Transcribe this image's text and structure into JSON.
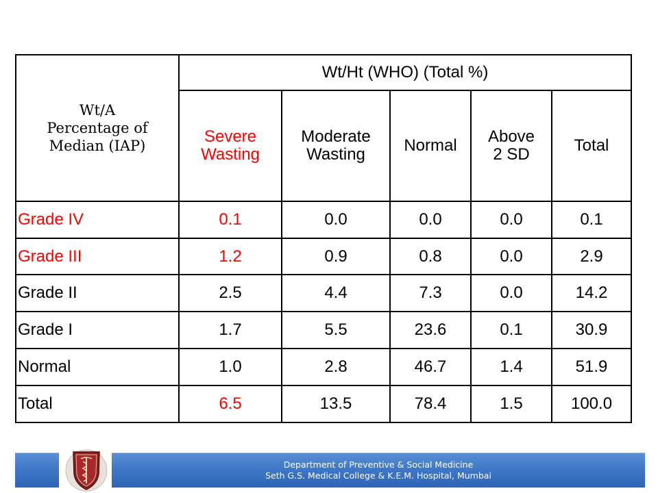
{
  "table": {
    "corner_header": [
      "Wt/A",
      "Percentage of",
      "Median (IAP)"
    ],
    "group_header": "Wt/Ht (WHO) (Total %)",
    "columns": [
      {
        "lines": [
          "Severe",
          "Wasting"
        ],
        "color": "#ff0000"
      },
      {
        "lines": [
          "Moderate",
          "Wasting"
        ],
        "color": "#000000"
      },
      {
        "lines": [
          "Normal"
        ],
        "color": "#000000"
      },
      {
        "lines": [
          "Above",
          "2 SD"
        ],
        "color": "#000000"
      },
      {
        "lines": [
          "Total"
        ],
        "color": "#000000"
      }
    ],
    "rows": [
      {
        "label": "Grade IV",
        "label_color": "#ff0000",
        "cells": [
          "0.1",
          "0.0",
          "0.0",
          "0.0",
          "0.1"
        ]
      },
      {
        "label": "Grade III",
        "label_color": "#ff0000",
        "cells": [
          "1.2",
          "0.9",
          "0.8",
          "0.0",
          "2.9"
        ]
      },
      {
        "label": "Grade II",
        "label_color": "#000000",
        "cells": [
          "2.5",
          "4.4",
          "7.3",
          "0.0",
          "14.2"
        ]
      },
      {
        "label": "Grade I",
        "label_color": "#000000",
        "cells": [
          "1.7",
          "5.5",
          "23.6",
          "0.1",
          "30.9"
        ]
      },
      {
        "label": "Normal",
        "label_color": "#000000",
        "cells": [
          "1.0",
          "2.8",
          "46.7",
          "1.4",
          "51.9"
        ]
      },
      {
        "label": "Total",
        "label_color": "#000000",
        "cells": [
          "6.5",
          "13.5",
          "78.4",
          "1.5",
          "100.0"
        ]
      }
    ],
    "highlight_color": "#ff0000"
  },
  "footer": {
    "line1": "Department of Preventive & Social Medicine",
    "line2": "Seth G.S. Medical College & K.E.M. Hospital, Mumbai",
    "bar_color": "#3f78c8",
    "logo_icon": "college-crest-icon"
  }
}
